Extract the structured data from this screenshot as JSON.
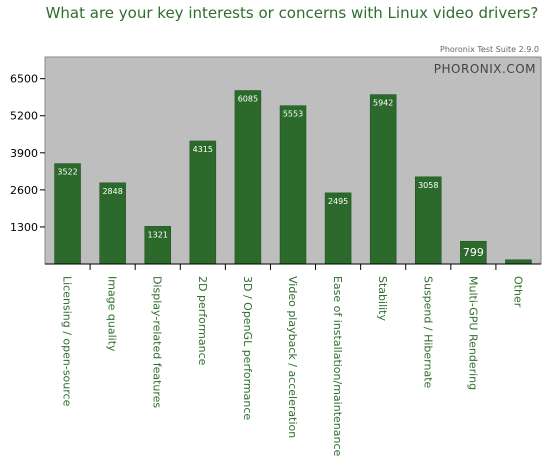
{
  "header": {
    "title": "What are your key interests or concerns with Linux video drivers?",
    "version": "Phoronix Test Suite 2.9.0",
    "brand": "PHORONIX.COM"
  },
  "colors": {
    "bar": "#2b6a2b",
    "plot_bg": "#bebebe",
    "title": "#2e6e2e"
  },
  "chart_data": {
    "type": "bar",
    "title": "What are your key interests or concerns with Linux video drivers?",
    "categories": [
      "Licensing / open-source",
      "Image quality",
      "Display-related features",
      "2D performance",
      "3D / OpenGL performance",
      "Video playback / acceleration",
      "Ease of installation/maintenance",
      "Stability",
      "Suspend / Hibernate",
      "Multi-GPU Rendering",
      "Other"
    ],
    "values": [
      3522,
      2848,
      1321,
      4315,
      6085,
      5553,
      2495,
      5942,
      3058,
      799,
      150
    ],
    "value_labels": [
      "3522",
      "2848",
      "1321",
      "4315",
      "6085",
      "5553",
      "2495",
      "5942",
      "3058",
      "799",
      ""
    ],
    "yticks": [
      "1300",
      "2600",
      "3900",
      "5200",
      "6500"
    ],
    "ylim": [
      0,
      7260
    ],
    "grid": false,
    "legend": "none"
  }
}
